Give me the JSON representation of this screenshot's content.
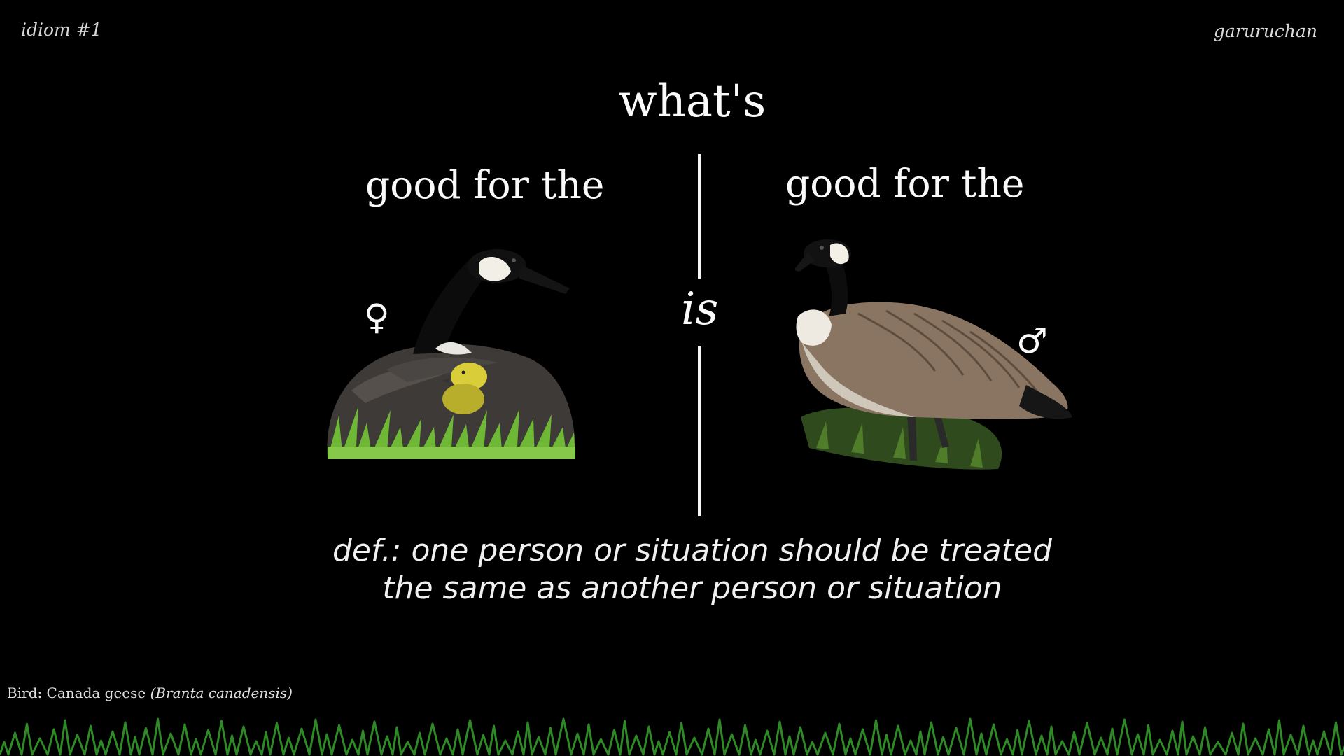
{
  "header": {
    "idiom_label": "idiom #1",
    "author": "garuruchan"
  },
  "main": {
    "title_word": "what's",
    "left_phrase": "good for the",
    "right_phrase": "good for the",
    "connector": "is",
    "female_symbol": "♀",
    "male_symbol": "♂"
  },
  "definition": {
    "line1": "def.: one person or situation should be treated",
    "line2": "the same as another person or situation"
  },
  "credit": {
    "prefix": "Bird: Canada geese",
    "scientific_name": "(Branta canadensis)"
  },
  "colors": {
    "background": "#000000",
    "text": "#f5f5f5",
    "grass": "#2e8a25"
  },
  "icons": {
    "female": "female-symbol-icon",
    "male": "male-symbol-icon",
    "left_bird": "goose-with-gosling-icon",
    "right_bird": "standing-goose-icon",
    "footer": "grass-icon"
  }
}
